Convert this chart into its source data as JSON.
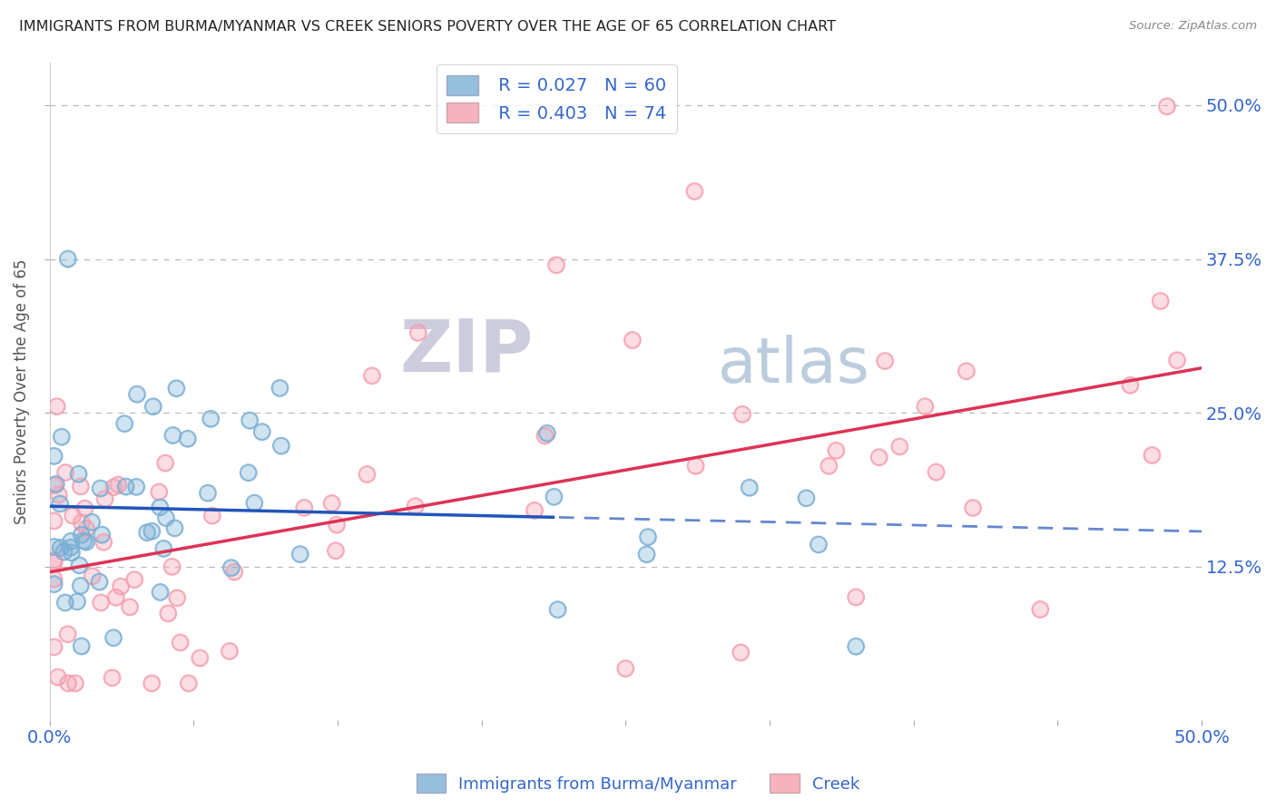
{
  "title": "IMMIGRANTS FROM BURMA/MYANMAR VS CREEK SENIORS POVERTY OVER THE AGE OF 65 CORRELATION CHART",
  "source": "Source: ZipAtlas.com",
  "ylabel": "Seniors Poverty Over the Age of 65",
  "legend_label_blue": "Immigrants from Burma/Myanmar",
  "legend_label_pink": "Creek",
  "legend_r_blue": "R = 0.027",
  "legend_n_blue": "N = 60",
  "legend_r_pink": "R = 0.403",
  "legend_n_pink": "N = 74",
  "blue_color": "#7BAFD4",
  "pink_color": "#F4A0B0",
  "trend_blue": "#2255BB",
  "trend_pink": "#DD3355",
  "bg_color": "#FFFFFF",
  "grid_color": "#BBBBBB",
  "title_color": "#222222",
  "axis_label_color": "#3366CC",
  "ytick_labels": [
    "12.5%",
    "25.0%",
    "37.5%",
    "50.0%"
  ],
  "ytick_values": [
    0.125,
    0.25,
    0.375,
    0.5
  ],
  "xmin": 0.0,
  "xmax": 0.5,
  "ymin": 0.0,
  "ymax": 0.535,
  "watermark_top": "ZIP",
  "watermark_bot": "atlas",
  "watermark_color": "#DDDDEE"
}
